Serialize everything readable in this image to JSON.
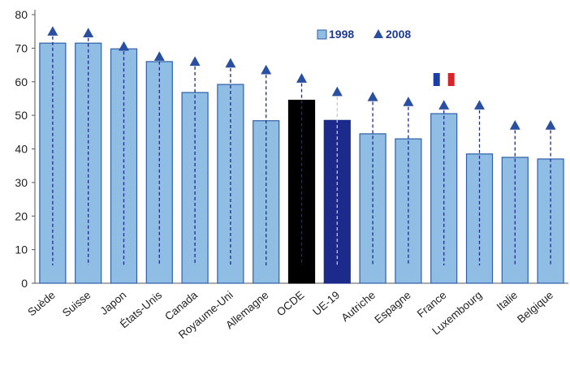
{
  "chart_data": {
    "type": "bar",
    "categories": [
      "Suède",
      "Suisse",
      "Japon",
      "États-Unis",
      "Canada",
      "Royaume-Uni",
      "Allemagne",
      "OCDE",
      "UE-19",
      "Autriche",
      "Espagne",
      "France",
      "Luxembourg",
      "Italie",
      "Belgique"
    ],
    "series": [
      {
        "name": "1998",
        "kind": "bar",
        "values": [
          71.5,
          71.5,
          69.8,
          66,
          56.8,
          59.2,
          48.4,
          54.5,
          48.5,
          44.5,
          43,
          50.5,
          38.5,
          37.5,
          37
        ]
      },
      {
        "name": "2008",
        "kind": "marker-triangle",
        "values": [
          75,
          74.5,
          70.5,
          67.5,
          66,
          65.5,
          63.5,
          61,
          57,
          55.5,
          54,
          53,
          53,
          47,
          47
        ]
      }
    ],
    "highlight": {
      "OCDE": "#000000",
      "UE-19": "#1c2a8c"
    },
    "flag_over": "France",
    "ylim": [
      0,
      80
    ],
    "yticks": [
      0,
      10,
      20,
      30,
      40,
      50,
      60,
      70,
      80
    ],
    "legend": {
      "position": "top-right",
      "items": [
        "1998",
        "2008"
      ]
    },
    "grid": false,
    "colors": {
      "bar": "#8fbde3",
      "bar_edge": "#2f5fa8",
      "marker": "#2b4fa0",
      "dash": "#1c2a8c"
    }
  }
}
